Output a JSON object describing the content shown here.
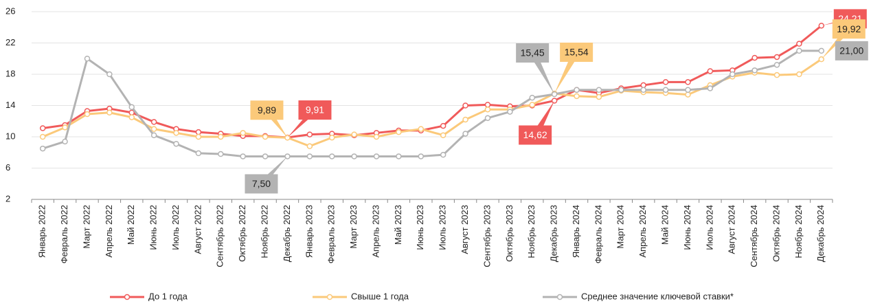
{
  "chart_data": {
    "type": "line",
    "categories": [
      "Январь 2022",
      "Февраль 2022",
      "Март 2022",
      "Апрель 2022",
      "Май 2022",
      "Июнь 2022",
      "Июль 2022",
      "Август 2022",
      "Сентябрь 2022",
      "Октябрь 2022",
      "Ноябрь 2022",
      "Декабрь 2022",
      "Январь 2023",
      "Февраль 2023",
      "Март 2023",
      "Апрель 2023",
      "Май 2023",
      "Июнь 2023",
      "Июль 2023",
      "Август 2023",
      "Сентябрь 2023",
      "Октябрь 2023",
      "Ноябрь 2023",
      "Декабрь 2023",
      "Январь 2024",
      "Февраль 2024",
      "Март 2024",
      "Апрель 2024",
      "Май 2024",
      "Июнь 2024",
      "Июль 2024",
      "Август 2024",
      "Сентябрь 2024",
      "Октябрь 2024",
      "Ноябрь 2024",
      "Декабрь 2024"
    ],
    "series": [
      {
        "name": "До 1 года",
        "color": "#f05a5a",
        "values": [
          11.1,
          11.5,
          13.3,
          13.6,
          13.1,
          11.9,
          11.0,
          10.6,
          10.4,
          10.1,
          10.1,
          9.91,
          10.3,
          10.4,
          10.2,
          10.5,
          10.8,
          10.8,
          11.4,
          14.0,
          14.1,
          13.9,
          14.0,
          14.62,
          16.0,
          15.6,
          16.2,
          16.6,
          17.0,
          17.0,
          18.4,
          18.5,
          20.1,
          20.2,
          21.9,
          24.21
        ],
        "value_labels": [
          null,
          null,
          null,
          null,
          null,
          null,
          null,
          null,
          null,
          null,
          null,
          "9,91",
          null,
          null,
          null,
          null,
          null,
          null,
          null,
          null,
          null,
          null,
          null,
          "14,62",
          null,
          null,
          null,
          null,
          null,
          null,
          null,
          null,
          null,
          null,
          null,
          "24,21"
        ]
      },
      {
        "name": "Свыше 1 года",
        "color": "#fbc97a",
        "values": [
          10.0,
          11.2,
          12.9,
          13.1,
          12.5,
          11.0,
          10.5,
          10.0,
          10.0,
          10.5,
          10.0,
          9.89,
          8.8,
          9.9,
          10.3,
          10.0,
          10.6,
          11.0,
          10.2,
          12.2,
          13.5,
          13.5,
          14.1,
          15.54,
          15.2,
          15.1,
          15.9,
          15.7,
          15.6,
          15.4,
          16.6,
          17.7,
          18.2,
          17.9,
          18.0,
          19.92
        ],
        "value_labels": [
          null,
          null,
          null,
          null,
          null,
          null,
          null,
          null,
          null,
          null,
          null,
          "9,89",
          null,
          null,
          null,
          null,
          null,
          null,
          null,
          null,
          null,
          null,
          null,
          "15,54",
          null,
          null,
          null,
          null,
          null,
          null,
          null,
          null,
          null,
          null,
          null,
          "19,92"
        ]
      },
      {
        "name": "Среднее значение ключевой ставки*",
        "color": "#b3b3b3",
        "values": [
          8.5,
          9.4,
          20.0,
          18.0,
          13.8,
          10.2,
          9.1,
          7.9,
          7.8,
          7.5,
          7.5,
          7.5,
          7.5,
          7.5,
          7.5,
          7.5,
          7.5,
          7.5,
          7.7,
          10.4,
          12.4,
          13.2,
          15.0,
          15.45,
          16.0,
          16.0,
          16.0,
          16.0,
          16.0,
          16.0,
          16.2,
          18.0,
          18.5,
          19.2,
          21.0,
          21.0
        ],
        "value_labels": [
          null,
          null,
          null,
          null,
          null,
          null,
          null,
          null,
          null,
          null,
          null,
          "7,50",
          null,
          null,
          null,
          null,
          null,
          null,
          null,
          null,
          null,
          null,
          null,
          "15,45",
          null,
          null,
          null,
          null,
          null,
          null,
          null,
          null,
          null,
          null,
          null,
          "21,00"
        ]
      }
    ],
    "ylim": [
      2,
      26
    ],
    "yticks": [
      2,
      6,
      10,
      14,
      18,
      22,
      26
    ],
    "grid": true
  }
}
